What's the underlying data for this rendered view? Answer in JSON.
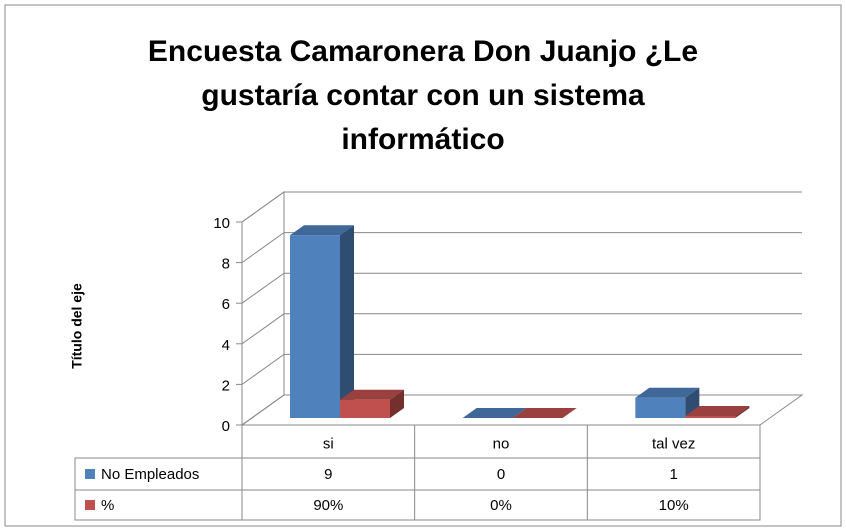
{
  "chart_data": {
    "type": "bar3d",
    "title": "Encuesta Camaronera Don Juanjo ¿Le gustaría contar con un sistema informático",
    "y_label": "Título del eje",
    "categories": [
      "si",
      "no",
      "tal vez"
    ],
    "series": [
      {
        "name": "No Empleados",
        "color": "#4f81bd",
        "values": [
          9,
          0,
          1
        ]
      },
      {
        "name": "%",
        "color": "#c0504d",
        "values": [
          0.9,
          0,
          0.1
        ],
        "value_labels": [
          "90%",
          "0%",
          "10%"
        ]
      }
    ],
    "ylim": [
      0,
      10
    ],
    "yticks": [
      0,
      2,
      4,
      6,
      8,
      10
    ],
    "grid": true
  }
}
